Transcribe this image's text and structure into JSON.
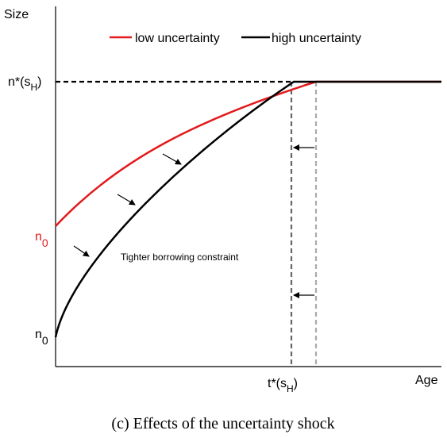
{
  "axis": {
    "y_label": "Size",
    "x_label": "Age"
  },
  "legend": {
    "entries": [
      {
        "label": "low uncertainty",
        "color": "#e31a1c"
      },
      {
        "label": "high uncertainty",
        "color": "#000000"
      }
    ]
  },
  "labels": {
    "n_star": {
      "base": "n*(s",
      "sub": "H",
      "close": ")"
    },
    "t_star": {
      "base": "t*(s",
      "sub": "H",
      "close": ")"
    },
    "n0_low": {
      "base": "n",
      "sub": "0"
    },
    "n0_high": {
      "base": "n",
      "sub": "0"
    },
    "annotation": "Tighter borrowing constraint"
  },
  "caption": "(c) Effects of the uncertainty shock"
}
